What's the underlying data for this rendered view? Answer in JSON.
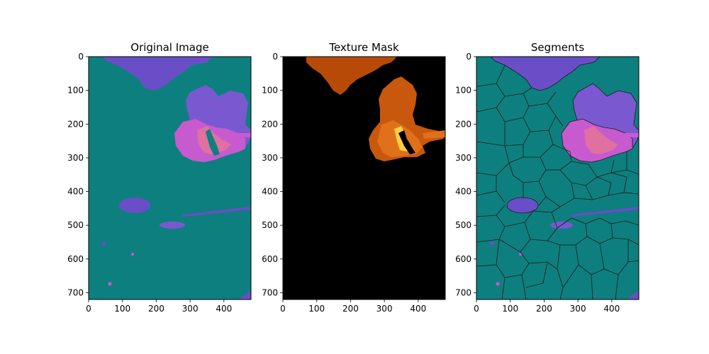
{
  "colors": {
    "background_teal": "#0e7f7f",
    "purple": "#6a4ec8",
    "violet": "#8a5ad8",
    "magenta": "#c85ad0",
    "pink": "#e070a0",
    "black": "#000000",
    "orange_dark": "#b84a08",
    "orange": "#e0701a",
    "yellow": "#ffd040",
    "boundary": "#1a1a1a"
  },
  "chart_data": [
    {
      "type": "heatmap",
      "title": "Original Image",
      "xlim": [
        0,
        480
      ],
      "ylim": [
        720,
        0
      ],
      "x_ticks": [
        "0",
        "100",
        "200",
        "300",
        "400"
      ],
      "y_ticks": [
        "0",
        "100",
        "200",
        "300",
        "400",
        "500",
        "600",
        "700"
      ]
    },
    {
      "type": "heatmap",
      "title": "Texture Mask",
      "xlim": [
        0,
        480
      ],
      "ylim": [
        720,
        0
      ],
      "x_ticks": [
        "0",
        "100",
        "200",
        "300",
        "400"
      ],
      "y_ticks": [
        "0",
        "100",
        "200",
        "300",
        "400",
        "500",
        "600",
        "700"
      ]
    },
    {
      "type": "heatmap",
      "title": "Segments",
      "xlim": [
        0,
        480
      ],
      "ylim": [
        720,
        0
      ],
      "x_ticks": [
        "0",
        "100",
        "200",
        "300",
        "400"
      ],
      "y_ticks": [
        "0",
        "100",
        "200",
        "300",
        "400",
        "500",
        "600",
        "700"
      ]
    }
  ]
}
